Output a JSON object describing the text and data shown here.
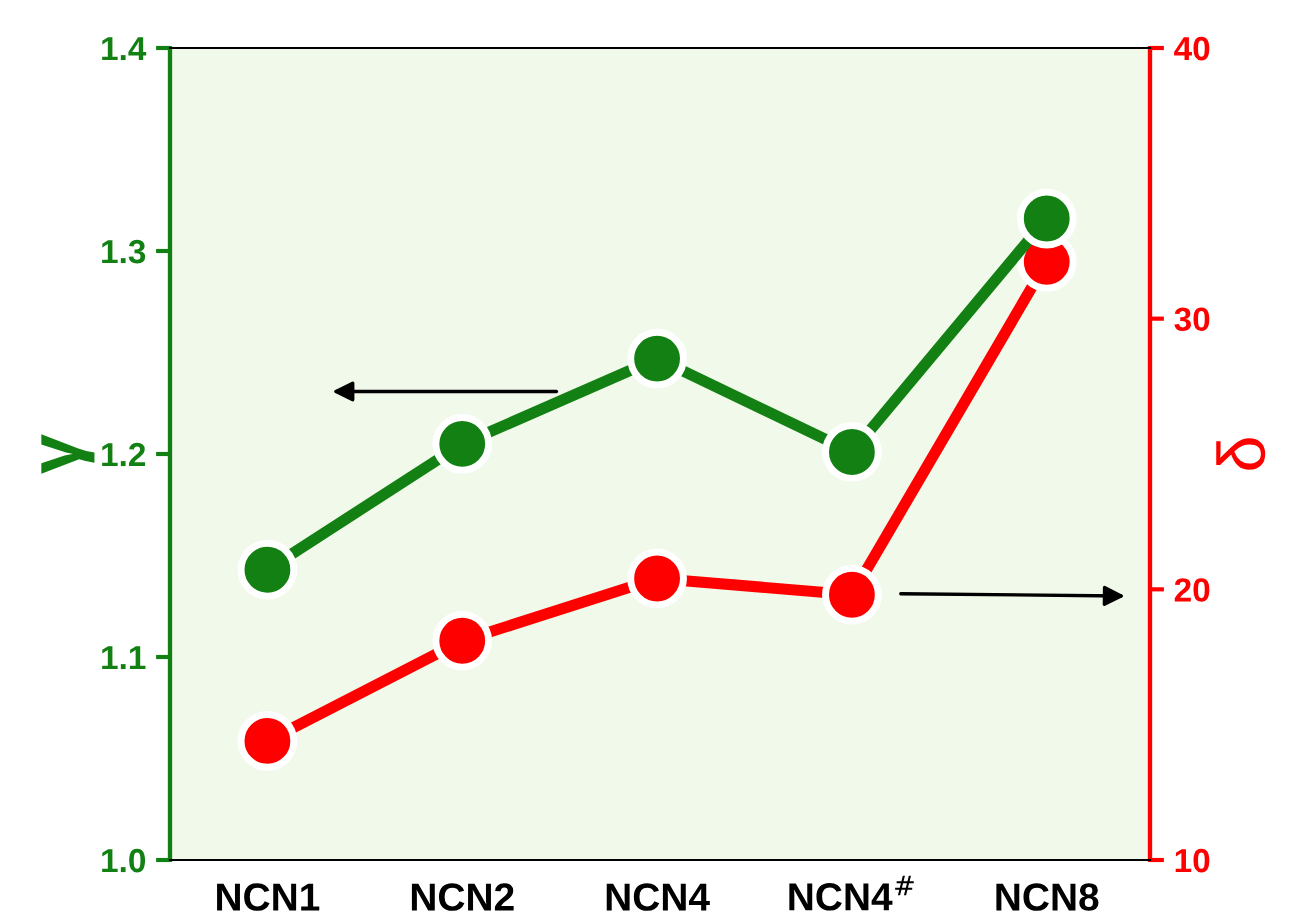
{
  "chart_data": {
    "type": "line",
    "ylabel": "γ",
    "y2label": "δ",
    "categories": [
      "NCN1",
      "NCN2",
      "NCN4",
      "NCN4$^{#}$",
      "NCN8"
    ],
    "series": [
      {
        "color": "#138013",
        "values": [
          1.143,
          1.205,
          1.247,
          1.201,
          1.316
        ]
      },
      {
        "color": "#ff0000",
        "axis": "y2",
        "values": [
          14.4,
          18.1,
          20.4,
          19.8,
          32.1
        ]
      }
    ],
    "ylim": [
      1.0,
      1.4
    ],
    "yticks": [
      {
        "value": 1.0,
        "label": "1.0"
      },
      1.1,
      1.2,
      1.3,
      1.4
    ],
    "y2lim": [
      10,
      40
    ],
    "y2ticks": [
      10,
      20,
      30,
      40
    ],
    "marker": "circle",
    "line_style": "solid",
    "grid": false,
    "legend": false
  }
}
